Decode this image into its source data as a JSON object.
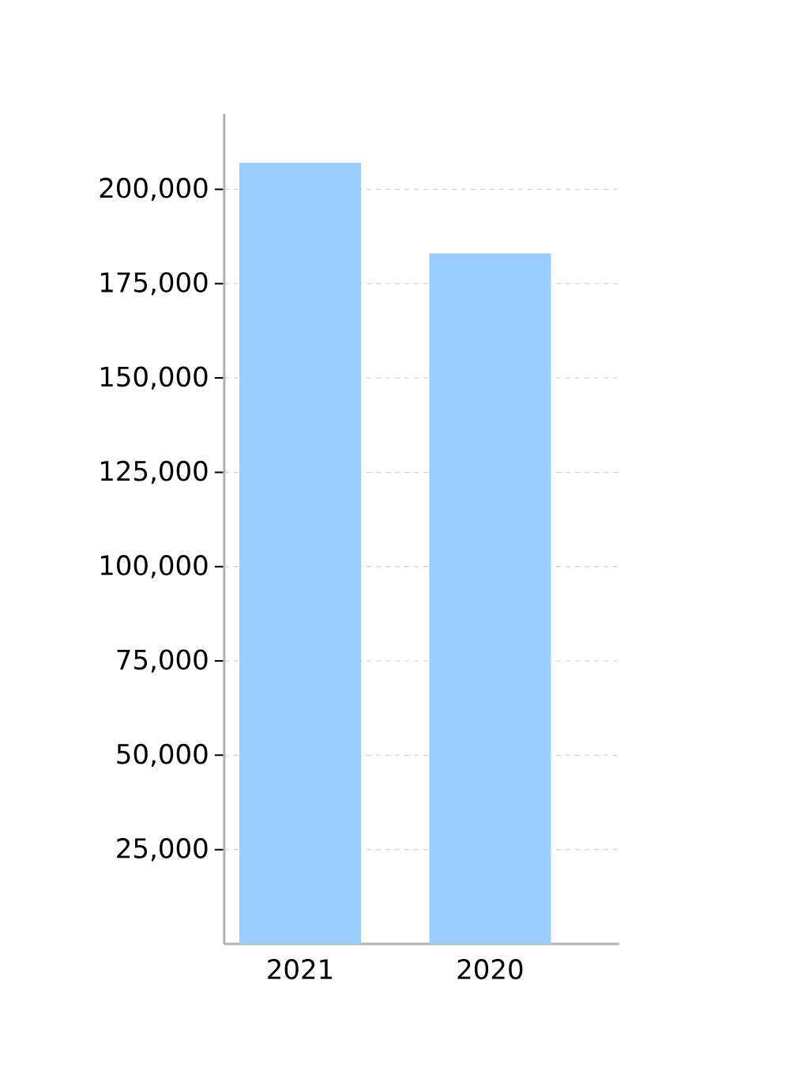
{
  "chart_data": {
    "type": "bar",
    "categories": [
      "2021",
      "2020"
    ],
    "values": [
      207000,
      183000
    ],
    "color": "#99ccff",
    "ylim": [
      0,
      220000
    ],
    "yticks": [
      {
        "value": 25000,
        "label": "25,000"
      },
      {
        "value": 50000,
        "label": "50,000"
      },
      {
        "value": 75000,
        "label": "75,000"
      },
      {
        "value": 100000,
        "label": "100,000"
      },
      {
        "value": 125000,
        "label": "125,000"
      },
      {
        "value": 150000,
        "label": "150,000"
      },
      {
        "value": 175000,
        "label": "175,000"
      },
      {
        "value": 200000,
        "label": "200,000"
      }
    ],
    "grid": "y"
  }
}
